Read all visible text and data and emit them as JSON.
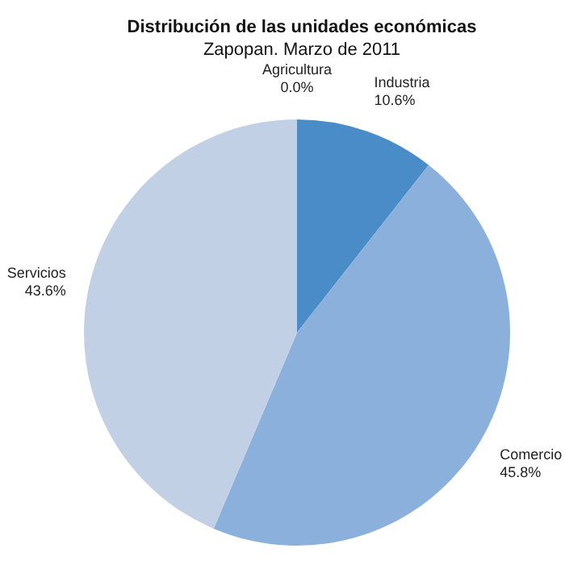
{
  "chart_data": {
    "type": "pie",
    "title": "Distribución de las unidades económicas",
    "subtitle": "Zapopan. Marzo de 2011",
    "categories": [
      "Agricultura",
      "Industria",
      "Comercio",
      "Servicios"
    ],
    "values": [
      0.0,
      10.6,
      45.8,
      43.6
    ],
    "colors": [
      "#2f5f99",
      "#4a8cc8",
      "#8cb0dc",
      "#c2d0e6"
    ],
    "value_labels": [
      "0.0%",
      "10.6%",
      "45.8%",
      "43.6%"
    ],
    "legend": false
  }
}
